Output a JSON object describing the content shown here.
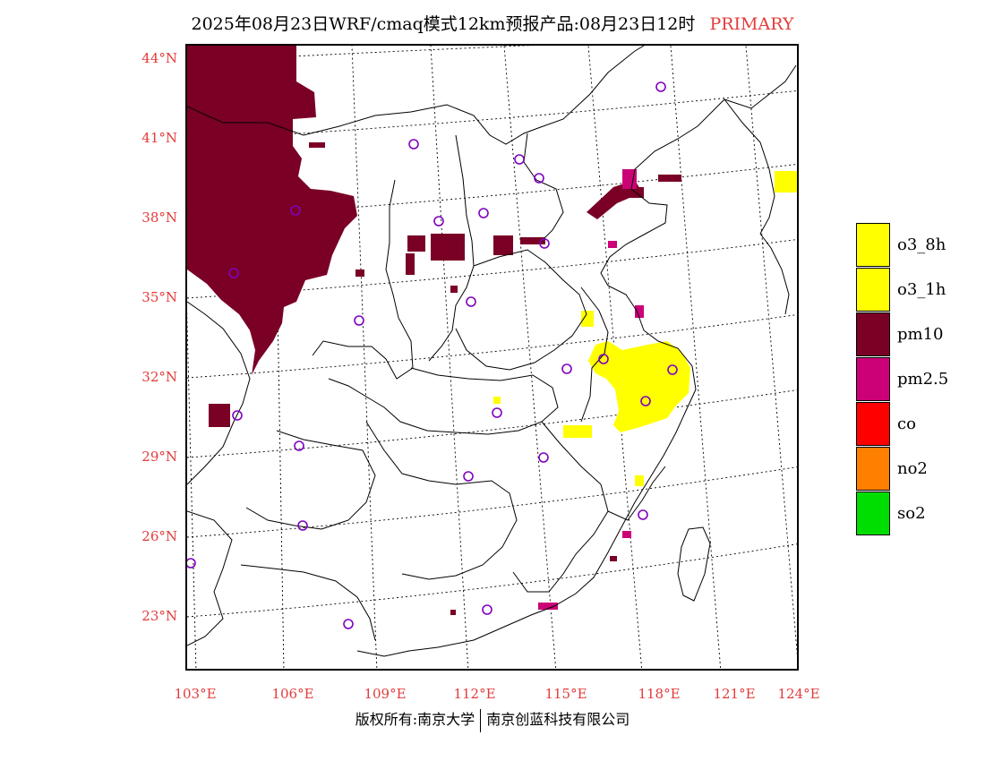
{
  "title": {
    "main": "2025年08月23日WRF/cmaq模式12km预报产品:08月23日12时",
    "tag": "PRIMARY"
  },
  "axes": {
    "lat_labels": [
      "44°N",
      "41°N",
      "38°N",
      "35°N",
      "32°N",
      "29°N",
      "26°N",
      "23°N"
    ],
    "lon_labels": [
      "103°E",
      "106°E",
      "109°E",
      "112°E",
      "115°E",
      "118°E",
      "121°E",
      "124°E"
    ]
  },
  "legend": [
    {
      "label": "o3_8h",
      "color": "#ffff00"
    },
    {
      "label": "o3_1h",
      "color": "#ffff00"
    },
    {
      "label": "pm10",
      "color": "#7a0026"
    },
    {
      "label": "pm2.5",
      "color": "#cc0077"
    },
    {
      "label": "co",
      "color": "#ff0000"
    },
    {
      "label": "no2",
      "color": "#ff7f00"
    },
    {
      "label": "so2",
      "color": "#00dd00"
    }
  ],
  "footer": {
    "left": "版权所有:南京大学",
    "right": "南京创蓝科技有限公司"
  },
  "colors": {
    "label_red": "#e33b3b",
    "pm10": "#7a0026",
    "pm25": "#cc0077",
    "o3": "#ffff00",
    "station_ring": "#8000c0"
  }
}
